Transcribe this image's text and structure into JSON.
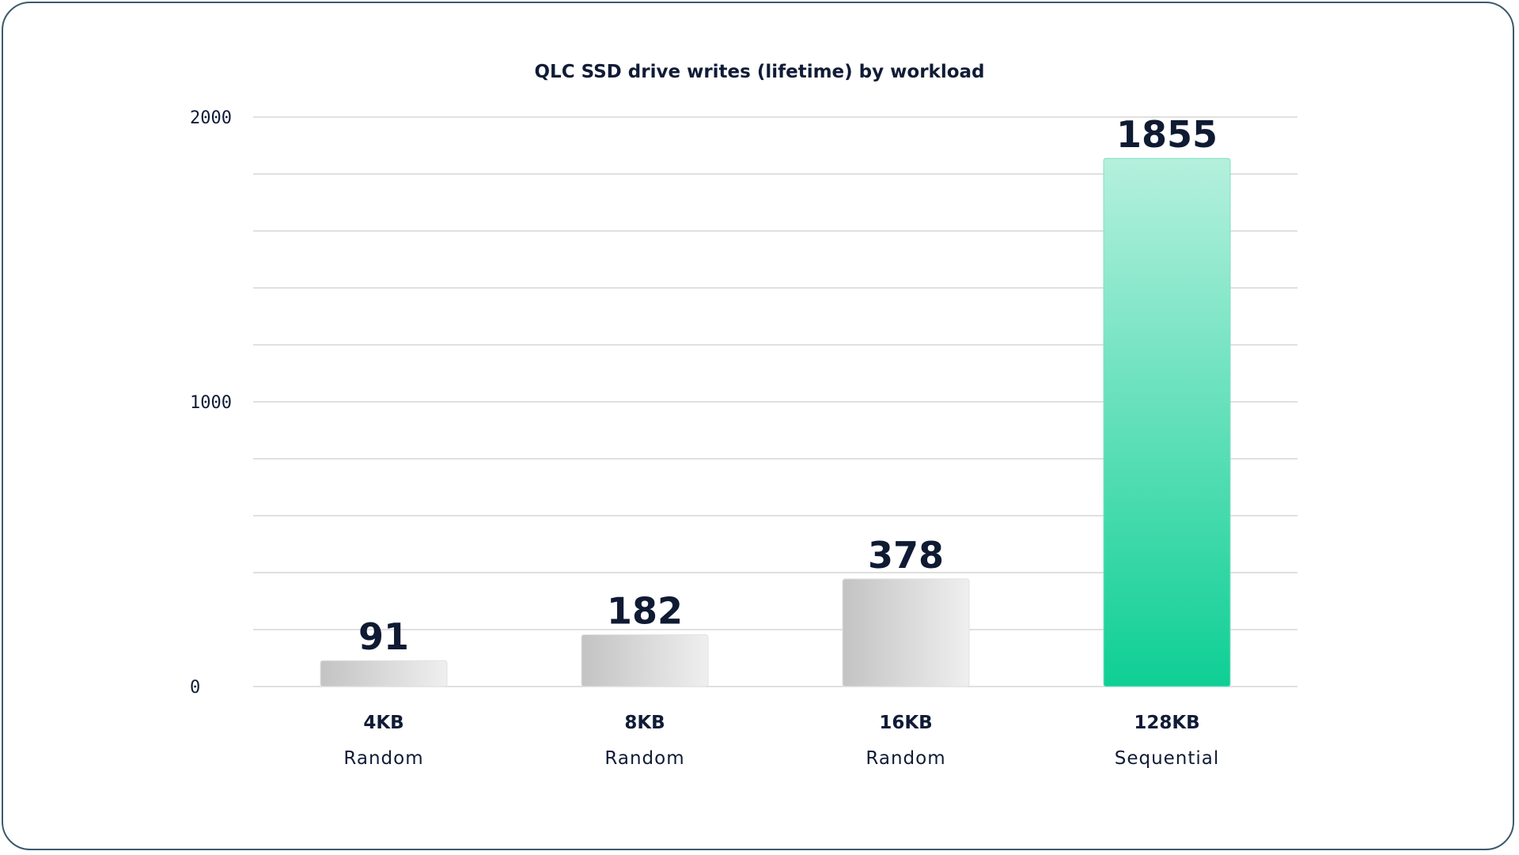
{
  "chart_data": {
    "type": "bar",
    "title": "QLC SSD drive writes (lifetime) by workload",
    "categories": [
      "4KB Random",
      "8KB Random",
      "16KB Random",
      "128KB Sequential"
    ],
    "category_primary": [
      "4KB",
      "8KB",
      "16KB",
      "128KB"
    ],
    "category_secondary": [
      "Random",
      "Random",
      "Random",
      "Sequential"
    ],
    "values": [
      91,
      182,
      378,
      1855
    ],
    "value_labels": [
      "91",
      "182",
      "378",
      "1855"
    ],
    "ylim": [
      0,
      2000
    ],
    "yticks": [
      0,
      1000,
      2000
    ],
    "ytick_labels": [
      "0",
      "1000",
      "2000"
    ],
    "gridlines_every": 200,
    "grid": true,
    "xlabel": "",
    "ylabel": "",
    "colors": {
      "highlight": "#0ecf95",
      "highlight_top": "#b5f0dd",
      "muted_left": "#c3c3c3",
      "muted_right": "#efefef",
      "highlight_label": "#19c792",
      "text": "#101c36",
      "grid": "#d6d6d6"
    },
    "highlight_index": 3
  }
}
